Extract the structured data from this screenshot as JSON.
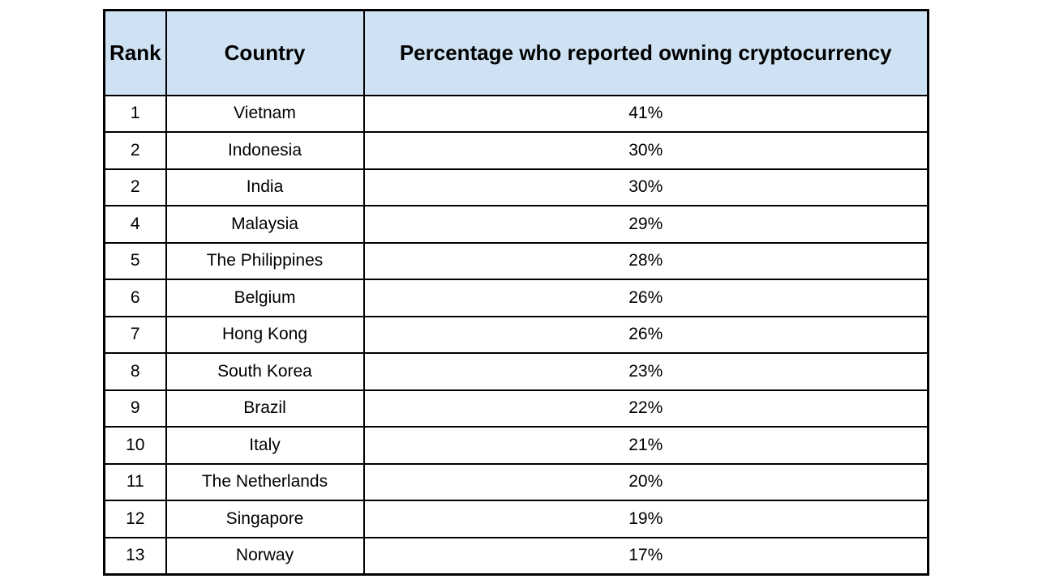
{
  "table": {
    "headers": {
      "rank": "Rank",
      "country": "Country",
      "percentage": "Percentage who reported owning cryptocurrency"
    },
    "header_bg": "#cfe2f3",
    "border_color": "#000000",
    "rows": [
      {
        "rank": "1",
        "country": "Vietnam",
        "percentage": "41%"
      },
      {
        "rank": "2",
        "country": "Indonesia",
        "percentage": "30%"
      },
      {
        "rank": "2",
        "country": "India",
        "percentage": "30%"
      },
      {
        "rank": "4",
        "country": "Malaysia",
        "percentage": "29%"
      },
      {
        "rank": "5",
        "country": "The Philippines",
        "percentage": "28%"
      },
      {
        "rank": "6",
        "country": "Belgium",
        "percentage": "26%"
      },
      {
        "rank": "7",
        "country": "Hong Kong",
        "percentage": "26%"
      },
      {
        "rank": "8",
        "country": "South Korea",
        "percentage": "23%"
      },
      {
        "rank": "9",
        "country": "Brazil",
        "percentage": "22%"
      },
      {
        "rank": "10",
        "country": "Italy",
        "percentage": "21%"
      },
      {
        "rank": "11",
        "country": "The Netherlands",
        "percentage": "20%"
      },
      {
        "rank": "12",
        "country": "Singapore",
        "percentage": "19%"
      },
      {
        "rank": "13",
        "country": "Norway",
        "percentage": "17%"
      }
    ]
  },
  "chart_data": {
    "type": "table",
    "title": "",
    "columns": [
      "Rank",
      "Country",
      "Percentage who reported owning cryptocurrency"
    ],
    "categories": [
      "Vietnam",
      "Indonesia",
      "India",
      "Malaysia",
      "The Philippines",
      "Belgium",
      "Hong Kong",
      "South Korea",
      "Brazil",
      "Italy",
      "The Netherlands",
      "Singapore",
      "Norway"
    ],
    "ranks": [
      1,
      2,
      2,
      4,
      5,
      6,
      7,
      8,
      9,
      10,
      11,
      12,
      13
    ],
    "values": [
      41,
      30,
      30,
      29,
      28,
      26,
      26,
      23,
      22,
      21,
      20,
      19,
      17
    ],
    "value_unit": "%",
    "layout": {
      "header_background": "#cfe2f3",
      "grid": true,
      "text_align": "center"
    }
  }
}
